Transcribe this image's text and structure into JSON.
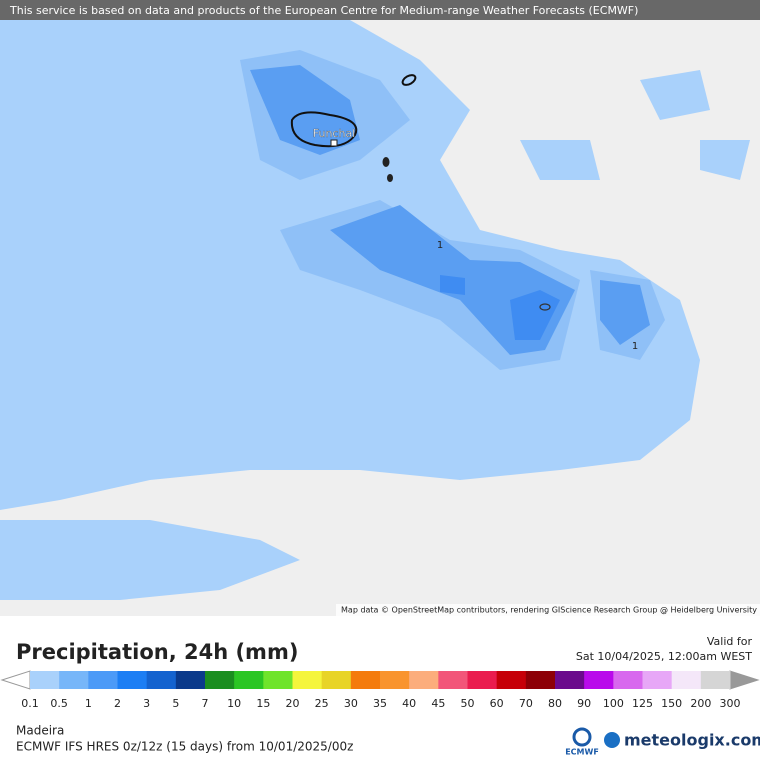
{
  "banner": "This service is based on data and products of the European Centre for Medium-range Weather Forecasts (ECMWF)",
  "map": {
    "place_label": "Funchal",
    "contour_labels": [
      "1",
      "1"
    ],
    "attribution": "Map data © OpenStreetMap contributors, rendering GIScience Research Group @ Heidelberg University"
  },
  "legend": {
    "title": "Precipitation, 24h (mm)",
    "valid_label": "Valid for",
    "valid_time": "Sat 10/04/2025, 12:00am WEST",
    "labels": [
      "0.1",
      "0.5",
      "1",
      "2",
      "3",
      "5",
      "7",
      "10",
      "15",
      "20",
      "25",
      "30",
      "35",
      "40",
      "45",
      "50",
      "60",
      "70",
      "80",
      "90",
      "100",
      "125",
      "150",
      "200",
      "300"
    ],
    "colors": [
      "#a9d1fb",
      "#77b6f9",
      "#4c9af7",
      "#1c7ef4",
      "#1463cf",
      "#0b3a8b",
      "#1b8e20",
      "#2bc624",
      "#6fe42b",
      "#f5f53c",
      "#e8d427",
      "#f47b0c",
      "#f9942e",
      "#fcad7c",
      "#f25579",
      "#ea1c4e",
      "#c60008",
      "#8d0006",
      "#6b0a8c",
      "#b90aeb",
      "#d868ee",
      "#e7a7f7",
      "#f4e7f9",
      "#d5d5d5"
    ]
  },
  "footer": {
    "region": "Madeira",
    "model": "ECMWF IFS HRES 0z/12z (15 days) from 10/01/2025/00z",
    "ecmwf_logo": "ECMWF",
    "brand": "meteologix.com"
  }
}
